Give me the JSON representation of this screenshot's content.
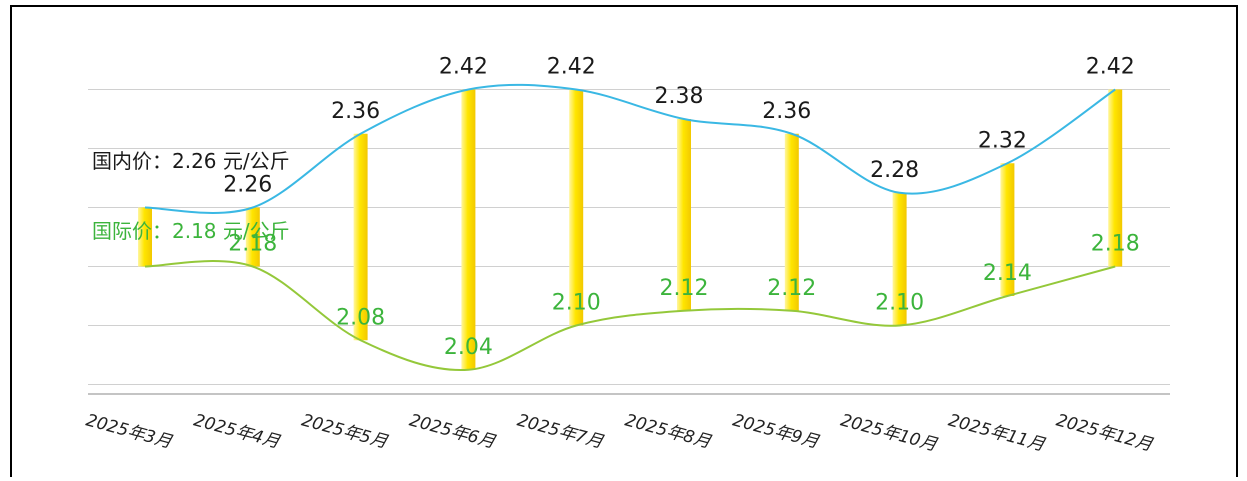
{
  "colors": {
    "domestic_line": "#3ab8e4",
    "intl_line": "#94c83a",
    "domestic_text": "#1a1a1a",
    "intl_text": "#3cb43c",
    "bar_light": "#fff6a0",
    "bar_mid": "#ffe600",
    "bar_dark": "#f2c800",
    "grid": "#d0d0d0",
    "axis": "#b0b0b0",
    "border": "#000000"
  },
  "legend": {
    "domestic_label": "国内价：2.26 元/公斤",
    "intl_label": "国际价：2.18 元/公斤"
  },
  "chart_data": {
    "type": "line",
    "categories": [
      "2025年3月",
      "2025年4月",
      "2025年5月",
      "2025年6月",
      "2025年7月",
      "2025年8月",
      "2025年9月",
      "2025年10月",
      "2025年11月",
      "2025年12月"
    ],
    "series": [
      {
        "key": "domestic",
        "values": [
          2.26,
          2.26,
          2.36,
          2.42,
          2.42,
          2.38,
          2.36,
          2.28,
          2.32,
          2.42
        ],
        "labels": [
          "",
          "2.26",
          "2.36",
          "2.42",
          "2.42",
          "2.38",
          "2.36",
          "2.28",
          "2.32",
          "2.42"
        ]
      },
      {
        "key": "intl",
        "values": [
          2.18,
          2.18,
          2.08,
          2.04,
          2.1,
          2.12,
          2.12,
          2.1,
          2.14,
          2.18
        ],
        "labels": [
          "",
          "2.18",
          "2.08",
          "2.04",
          "2.10",
          "2.12",
          "2.12",
          "2.10",
          "2.14",
          "2.18"
        ]
      }
    ],
    "ylim": [
      1.98,
      2.46
    ],
    "grid": true,
    "xlabel": "",
    "ylabel": "",
    "title": ""
  }
}
